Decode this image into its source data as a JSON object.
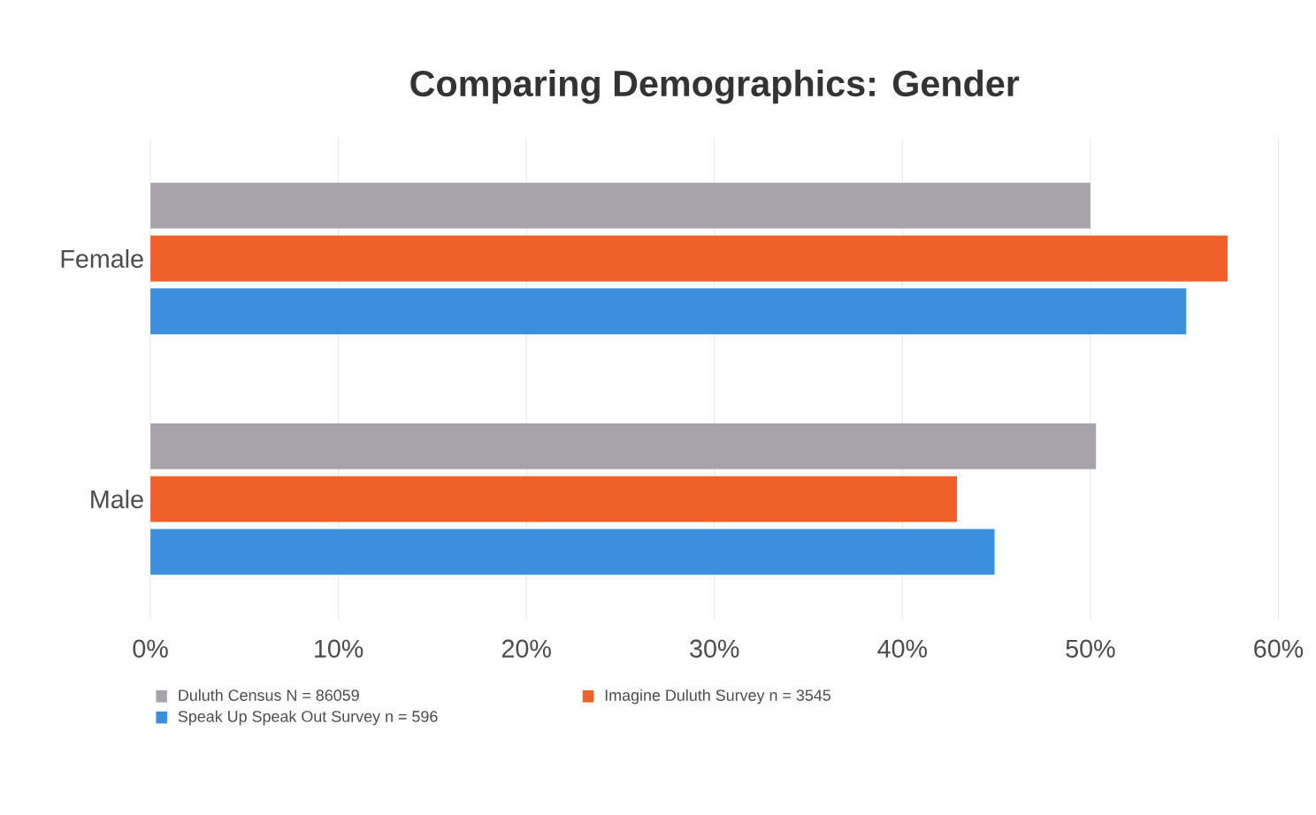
{
  "chart_data": {
    "type": "bar",
    "orientation": "horizontal",
    "title": "Comparing Demographics: Gender",
    "categories": [
      "Female",
      "Male"
    ],
    "series": [
      {
        "name": "Duluth Census  N = 86059",
        "color": "#a8a3aa",
        "values": [
          50,
          50.3
        ]
      },
      {
        "name": "Imagine Duluth Survey n = 3545",
        "color": "#ef6128",
        "values": [
          57.3,
          42.9
        ]
      },
      {
        "name": "Speak Up Speak Out Survey n = 596",
        "color": "#3b8fdc",
        "values": [
          55.1,
          44.9
        ]
      }
    ],
    "xlim": [
      0,
      60
    ],
    "xticks": [
      {
        "value": 0,
        "label": "0%"
      },
      {
        "value": 10,
        "label": "10%"
      },
      {
        "value": 20,
        "label": "20%"
      },
      {
        "value": 30,
        "label": "30%"
      },
      {
        "value": 40,
        "label": "40%"
      },
      {
        "value": 50,
        "label": "50%"
      },
      {
        "value": 60,
        "label": "60%"
      }
    ],
    "grid": "x",
    "legend": "bottom"
  }
}
